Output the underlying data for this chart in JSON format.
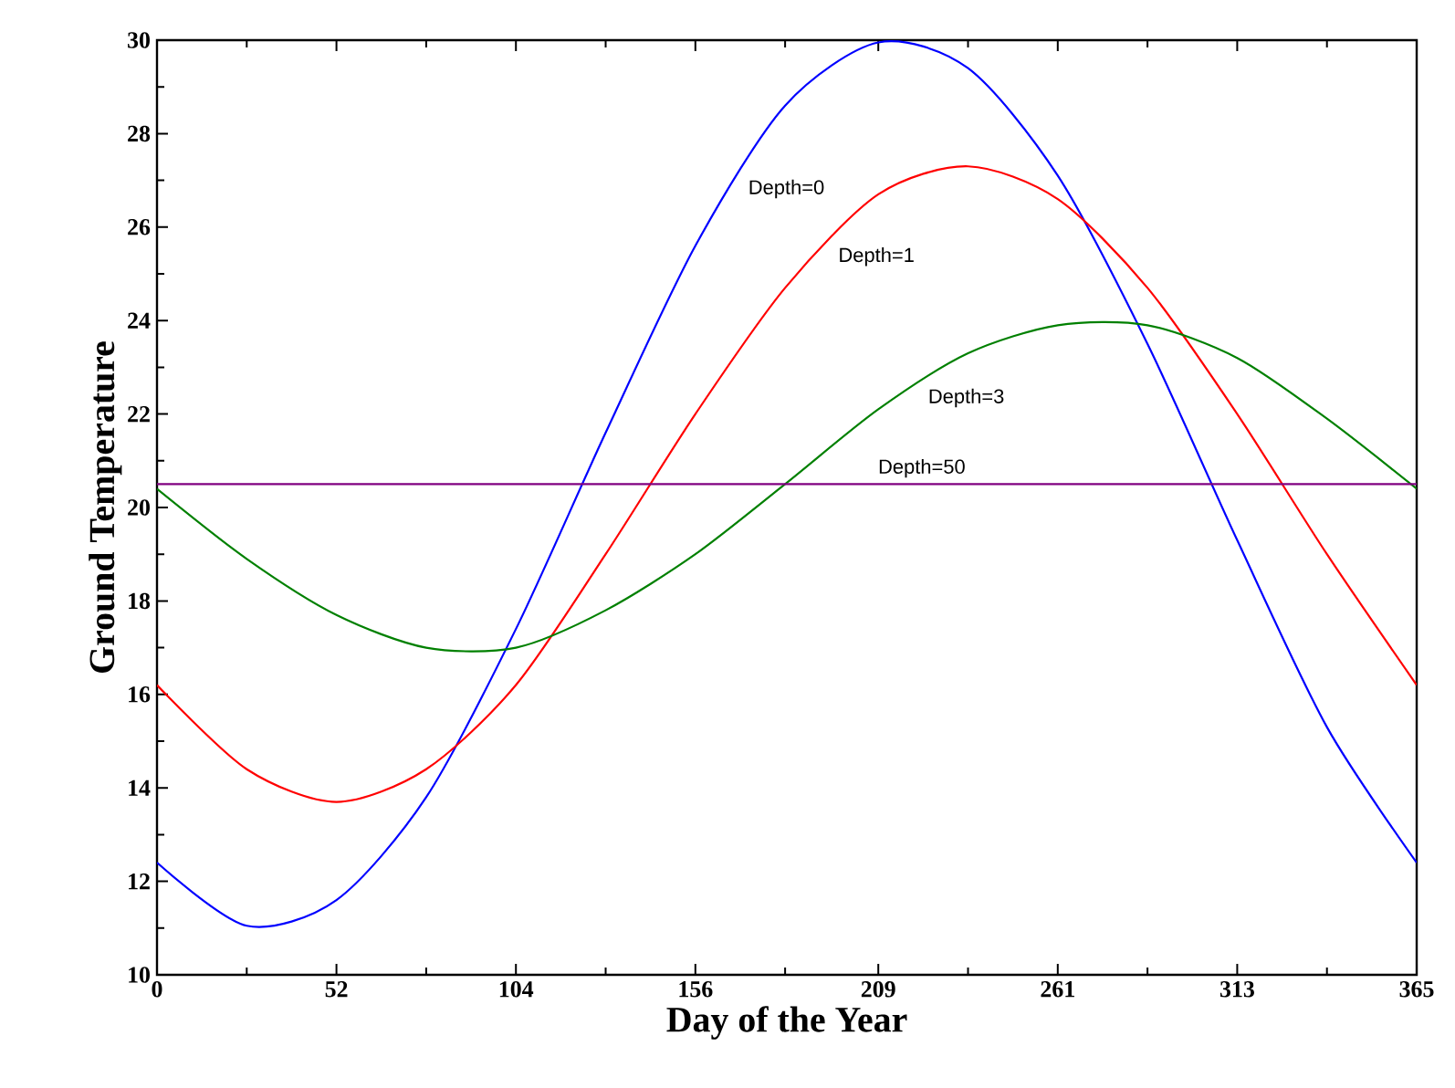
{
  "chart_data": {
    "type": "line",
    "xlabel": "Day of the Year",
    "ylabel": "Ground Temperature",
    "x": [
      0,
      26,
      52,
      78,
      104,
      130,
      156,
      182,
      209,
      235,
      261,
      287,
      313,
      339,
      365
    ],
    "series": [
      {
        "name": "Depth=0",
        "color": "#0000ff",
        "values": [
          12.4,
          11.05,
          11.6,
          13.8,
          17.4,
          21.6,
          25.6,
          28.6,
          29.95,
          29.4,
          27.1,
          23.5,
          19.3,
          15.3,
          12.4
        ]
      },
      {
        "name": "Depth=1",
        "color": "#ff0000",
        "values": [
          16.2,
          14.4,
          13.7,
          14.4,
          16.2,
          19.0,
          22.0,
          24.7,
          26.7,
          27.3,
          26.6,
          24.7,
          22.0,
          19.0,
          16.2
        ]
      },
      {
        "name": "Depth=3",
        "color": "#008000",
        "values": [
          20.4,
          18.9,
          17.7,
          17.0,
          17.0,
          17.8,
          19.0,
          20.5,
          22.1,
          23.3,
          23.9,
          23.9,
          23.2,
          21.9,
          20.4
        ]
      },
      {
        "name": "Depth=50",
        "color": "#800080",
        "values": [
          20.5,
          20.5,
          20.5,
          20.5,
          20.5,
          20.5,
          20.5,
          20.5,
          20.5,
          20.5,
          20.5,
          20.5,
          20.5,
          20.5,
          20.5
        ]
      }
    ],
    "xlim": [
      0,
      365
    ],
    "ylim": [
      10,
      30
    ],
    "xticks": [
      0,
      {
        "value": 26,
        "label": null
      },
      52,
      {
        "value": 78,
        "label": null
      },
      104,
      {
        "value": 130,
        "label": null
      },
      156,
      {
        "value": 182,
        "label": null
      },
      209,
      {
        "value": 235,
        "label": null
      },
      261,
      {
        "value": 287,
        "label": null
      },
      313,
      {
        "value": 339,
        "label": null
      },
      365
    ],
    "yticks": [
      10,
      {
        "value": 11,
        "label": null
      },
      12,
      {
        "value": 13,
        "label": null
      },
      14,
      {
        "value": 15,
        "label": null
      },
      16,
      {
        "value": 17,
        "label": null
      },
      18,
      {
        "value": 19,
        "label": null
      },
      20,
      {
        "value": 21,
        "label": null
      },
      22,
      {
        "value": 23,
        "label": null
      },
      24,
      {
        "value": 25,
        "label": null
      },
      26,
      {
        "value": 27,
        "label": null
      },
      28,
      {
        "value": 29,
        "label": null
      },
      30
    ],
    "grid": false,
    "legend": false,
    "marker": "none",
    "line_style": "solid"
  }
}
